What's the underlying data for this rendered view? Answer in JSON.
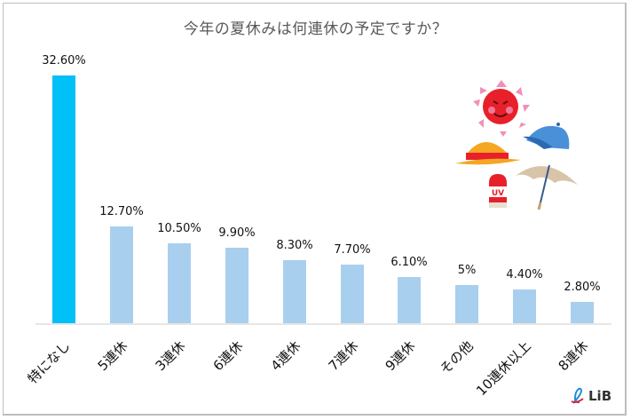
{
  "chart_data": {
    "type": "bar",
    "title": "今年の夏休みは何連休の予定ですか？",
    "xlabel": "",
    "ylabel": "",
    "ylim": [
      0,
      33
    ],
    "grid": false,
    "legend": null,
    "categories": [
      "特になし",
      "5連休",
      "3連休",
      "6連休",
      "4連休",
      "7連休",
      "9連休",
      "その他",
      "10連休以上",
      "8連休"
    ],
    "values": [
      32.6,
      12.7,
      10.5,
      9.9,
      8.3,
      7.7,
      6.1,
      5.0,
      4.4,
      2.8
    ],
    "value_labels": [
      "32.60%",
      "12.70%",
      "10.50%",
      "9.90%",
      "8.30%",
      "7.70%",
      "6.10%",
      "5%",
      "4.40%",
      "2.80%"
    ],
    "colors": {
      "highlight": "#00c0f8",
      "default": "#a9cfef"
    }
  },
  "title": "今年の夏休みは何連休の予定ですか？",
  "logo": {
    "text": "LiB",
    "icon": "lib-ribbon-icon"
  },
  "illustration": {
    "items": [
      "sun-icon",
      "cap-icon",
      "straw-hat-icon",
      "parasol-icon",
      "sunscreen-uv-icon"
    ],
    "uv_text": "UV"
  }
}
